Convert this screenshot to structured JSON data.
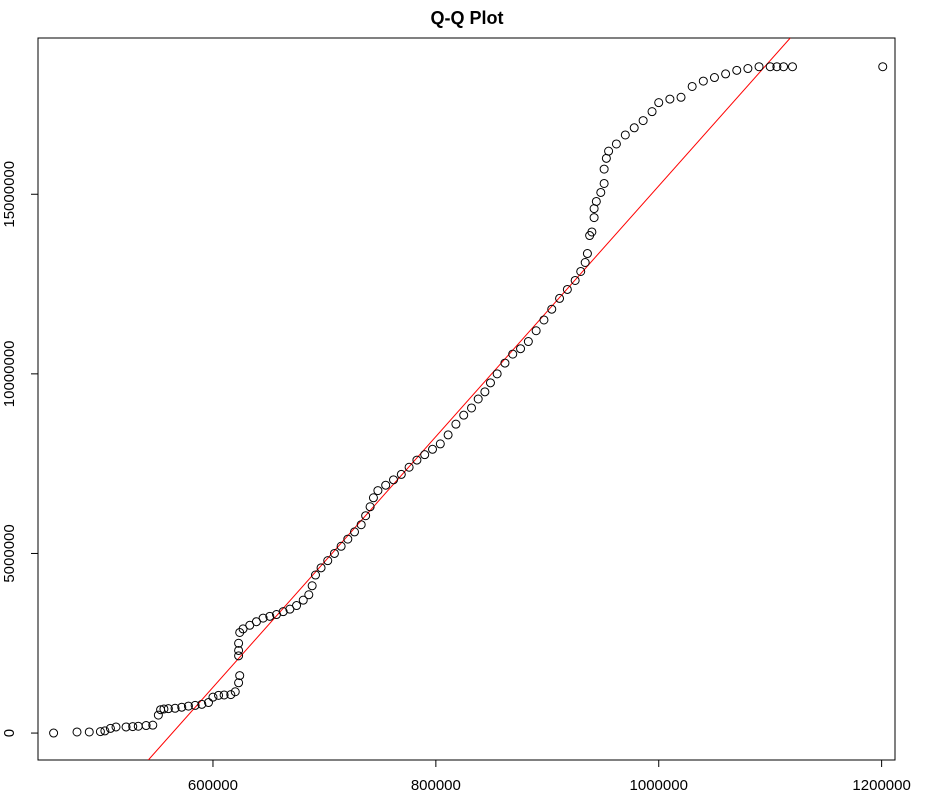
{
  "chart_data": {
    "type": "scatter",
    "title": "Q-Q Plot",
    "xlabel": "",
    "ylabel": "",
    "xlim": [
      443000,
      1212000
    ],
    "ylim": [
      -750000,
      19350000
    ],
    "x_ticks": [
      600000,
      800000,
      1000000,
      1200000
    ],
    "x_tick_labels": [
      "600000",
      "800000",
      "1000000",
      "1200000"
    ],
    "y_ticks": [
      0,
      5000000,
      10000000,
      15000000
    ],
    "y_tick_labels": [
      "0",
      "5000000",
      "10000000",
      "15000000"
    ],
    "grid": false,
    "marker": "open-circle",
    "point_color": "#000000",
    "reference_line": {
      "color": "#ff0000",
      "points": [
        [
          542000,
          -750000
        ],
        [
          1118000,
          19350000
        ]
      ]
    },
    "points": [
      [
        457000,
        0
      ],
      [
        478000,
        30000
      ],
      [
        489000,
        30000
      ],
      [
        499000,
        40000
      ],
      [
        503000,
        60000
      ],
      [
        508000,
        130000
      ],
      [
        513000,
        170000
      ],
      [
        522000,
        170000
      ],
      [
        528000,
        180000
      ],
      [
        533000,
        190000
      ],
      [
        540000,
        210000
      ],
      [
        546000,
        220000
      ],
      [
        551000,
        500000
      ],
      [
        553000,
        650000
      ],
      [
        556000,
        670000
      ],
      [
        560000,
        680000
      ],
      [
        566000,
        690000
      ],
      [
        572000,
        720000
      ],
      [
        578000,
        750000
      ],
      [
        584000,
        770000
      ],
      [
        590000,
        800000
      ],
      [
        596000,
        850000
      ],
      [
        600000,
        1000000
      ],
      [
        605000,
        1050000
      ],
      [
        610000,
        1060000
      ],
      [
        616000,
        1070000
      ],
      [
        620000,
        1150000
      ],
      [
        623000,
        1400000
      ],
      [
        624000,
        1600000
      ],
      [
        623000,
        2150000
      ],
      [
        623000,
        2300000
      ],
      [
        623000,
        2500000
      ],
      [
        624000,
        2800000
      ],
      [
        627000,
        2900000
      ],
      [
        633000,
        3000000
      ],
      [
        639000,
        3100000
      ],
      [
        645000,
        3200000
      ],
      [
        651000,
        3250000
      ],
      [
        657000,
        3300000
      ],
      [
        663000,
        3380000
      ],
      [
        669000,
        3450000
      ],
      [
        675000,
        3550000
      ],
      [
        681000,
        3700000
      ],
      [
        686000,
        3850000
      ],
      [
        689000,
        4100000
      ],
      [
        692000,
        4400000
      ],
      [
        697000,
        4600000
      ],
      [
        703000,
        4800000
      ],
      [
        709000,
        5000000
      ],
      [
        715000,
        5200000
      ],
      [
        721000,
        5400000
      ],
      [
        727000,
        5600000
      ],
      [
        733000,
        5800000
      ],
      [
        737000,
        6050000
      ],
      [
        741000,
        6300000
      ],
      [
        744000,
        6550000
      ],
      [
        748000,
        6750000
      ],
      [
        755000,
        6900000
      ],
      [
        762000,
        7050000
      ],
      [
        769000,
        7200000
      ],
      [
        776000,
        7400000
      ],
      [
        783000,
        7600000
      ],
      [
        790000,
        7750000
      ],
      [
        797000,
        7900000
      ],
      [
        804000,
        8050000
      ],
      [
        811000,
        8300000
      ],
      [
        818000,
        8600000
      ],
      [
        825000,
        8850000
      ],
      [
        832000,
        9050000
      ],
      [
        838000,
        9300000
      ],
      [
        844000,
        9500000
      ],
      [
        849000,
        9750000
      ],
      [
        855000,
        10000000
      ],
      [
        862000,
        10300000
      ],
      [
        869000,
        10550000
      ],
      [
        876000,
        10700000
      ],
      [
        883000,
        10900000
      ],
      [
        890000,
        11200000
      ],
      [
        897000,
        11500000
      ],
      [
        904000,
        11800000
      ],
      [
        911000,
        12100000
      ],
      [
        918000,
        12350000
      ],
      [
        925000,
        12600000
      ],
      [
        930000,
        12850000
      ],
      [
        934000,
        13100000
      ],
      [
        936000,
        13350000
      ],
      [
        938000,
        13850000
      ],
      [
        940000,
        13950000
      ],
      [
        942000,
        14350000
      ],
      [
        942000,
        14600000
      ],
      [
        944000,
        14800000
      ],
      [
        948000,
        15050000
      ],
      [
        951000,
        15300000
      ],
      [
        951000,
        15700000
      ],
      [
        953000,
        16000000
      ],
      [
        955000,
        16200000
      ],
      [
        962000,
        16400000
      ],
      [
        970000,
        16650000
      ],
      [
        978000,
        16850000
      ],
      [
        986000,
        17050000
      ],
      [
        994000,
        17300000
      ],
      [
        1000000,
        17550000
      ],
      [
        1010000,
        17650000
      ],
      [
        1020000,
        17700000
      ],
      [
        1030000,
        18000000
      ],
      [
        1040000,
        18150000
      ],
      [
        1050000,
        18250000
      ],
      [
        1060000,
        18350000
      ],
      [
        1070000,
        18450000
      ],
      [
        1080000,
        18500000
      ],
      [
        1090000,
        18550000
      ],
      [
        1100000,
        18550000
      ],
      [
        1106000,
        18550000
      ],
      [
        1112000,
        18550000
      ],
      [
        1120000,
        18550000
      ],
      [
        1201000,
        18550000
      ]
    ]
  }
}
